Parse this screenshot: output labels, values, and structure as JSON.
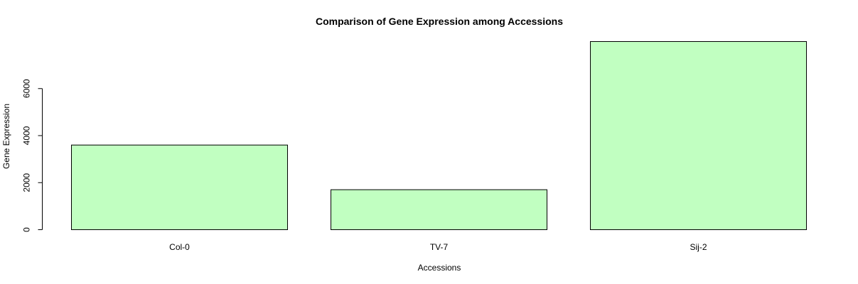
{
  "chart_data": {
    "type": "bar",
    "title": "Comparison of Gene Expression among Accessions",
    "xlabel": "Accessions",
    "ylabel": "Gene Expression",
    "categories": [
      "Col-0",
      "TV-7",
      "Sij-2"
    ],
    "values": [
      3600,
      1700,
      8000
    ],
    "y_ticks": [
      0,
      2000,
      4000,
      6000
    ],
    "y_tick_labels": [
      "0",
      "2000",
      "4000",
      "6000"
    ],
    "ylim": [
      0,
      8000
    ],
    "bar_color": "#C1FFC1",
    "bar_border_color": "#000000",
    "grid": false,
    "legend": "none"
  }
}
